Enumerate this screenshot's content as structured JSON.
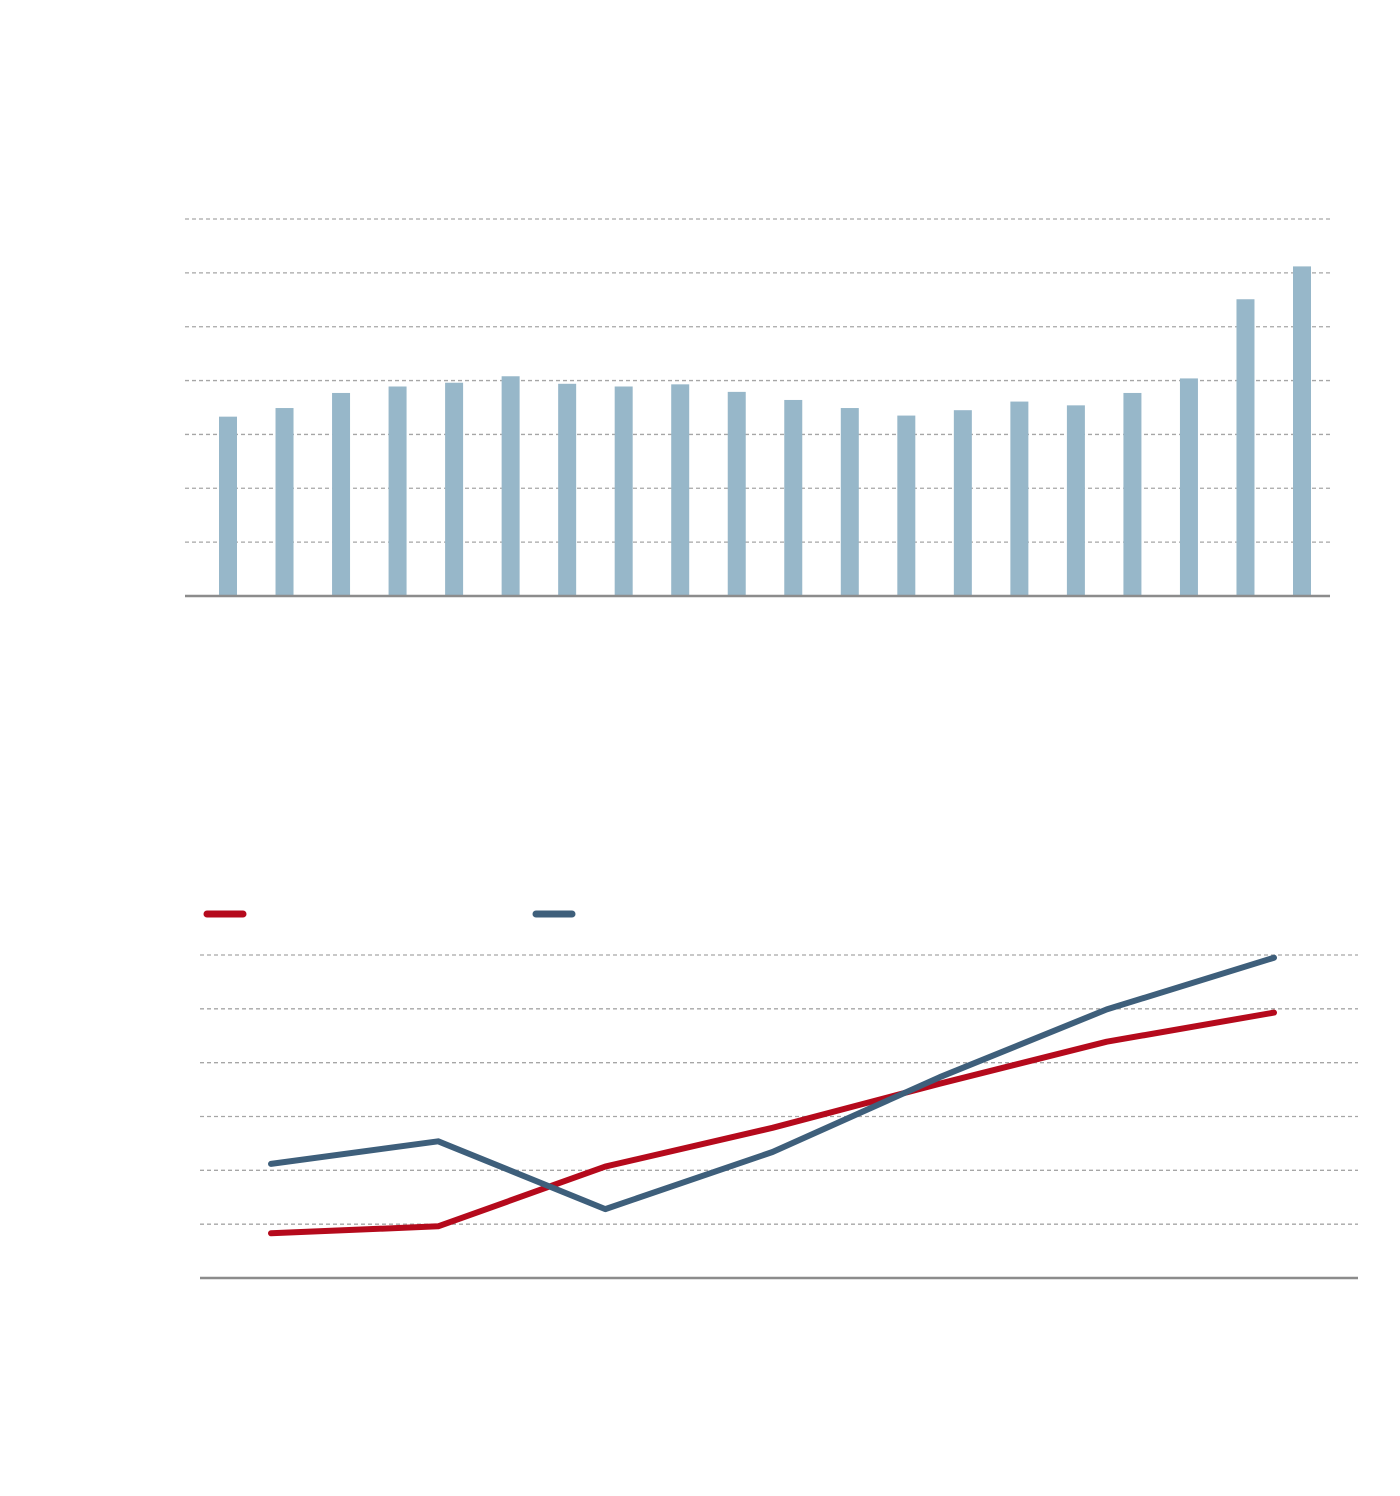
{
  "colors": {
    "bar": "#97b7c9",
    "grid": "#a6a6a6",
    "axis": "#8c8c8c",
    "series_red": "#b50a1c",
    "series_blue": "#3e5f7b"
  },
  "chart_data": [
    {
      "type": "bar",
      "title": "",
      "xlabel": "",
      "ylabel": "",
      "grid": true,
      "ylim": [
        0,
        7
      ],
      "gridlines": [
        1,
        2,
        3,
        4,
        5,
        6,
        7
      ],
      "values": [
        3.33,
        3.49,
        3.77,
        3.89,
        3.96,
        4.08,
        3.94,
        3.89,
        3.93,
        3.79,
        3.64,
        3.49,
        3.35,
        3.45,
        3.61,
        3.54,
        3.77,
        4.04,
        5.51,
        6.12
      ]
    },
    {
      "type": "line",
      "title": "",
      "xlabel": "",
      "ylabel": "",
      "grid": true,
      "legend_position": "top-left",
      "ylim": [
        0,
        6
      ],
      "gridlines": [
        1,
        2,
        3,
        4,
        5,
        6
      ],
      "x": [
        1,
        2,
        3,
        4,
        5,
        6,
        7
      ],
      "series": [
        {
          "values": [
            0.83,
            0.96,
            2.07,
            2.79,
            3.61,
            4.39,
            4.93
          ],
          "color_key": "series_red"
        },
        {
          "values": [
            2.12,
            2.54,
            1.28,
            2.34,
            3.73,
            4.99,
            5.95
          ],
          "color_key": "series_blue"
        }
      ]
    }
  ]
}
